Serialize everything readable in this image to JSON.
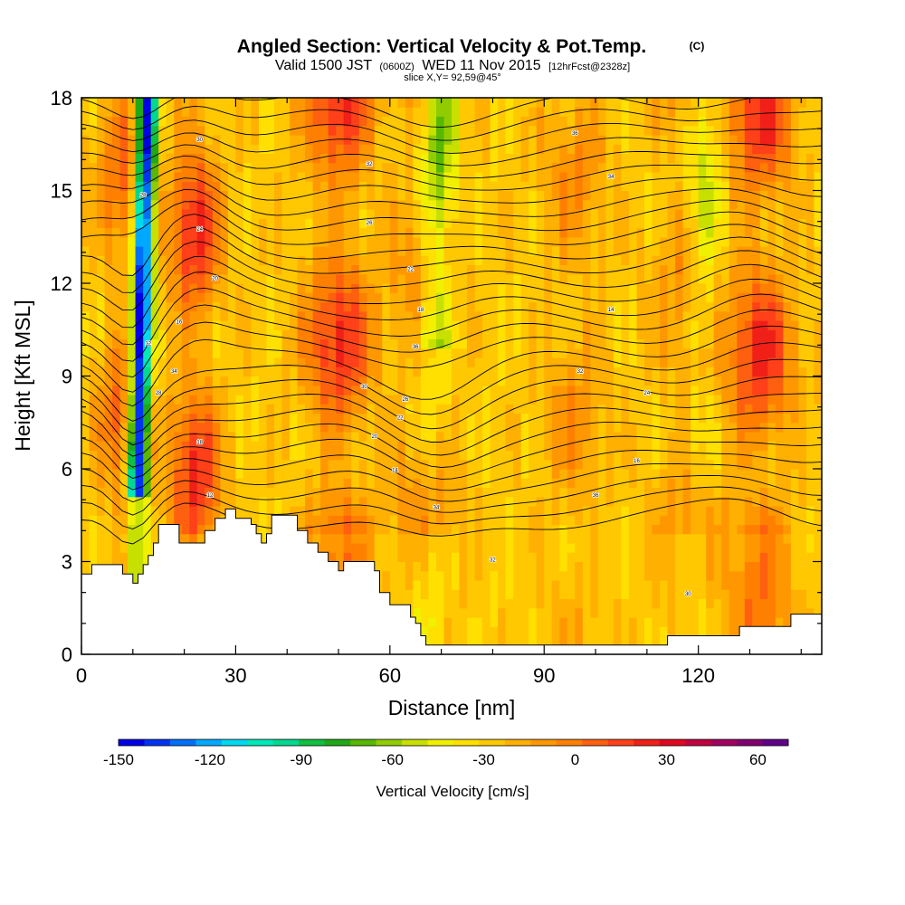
{
  "figure": {
    "title": "Angled Section: Vertical Velocity & Pot.Temp.",
    "title_unit": "(C)",
    "subtitle_a": "Valid 1500 JST",
    "subtitle_b": "(0600Z)",
    "subtitle_c": "WED 11 Nov 2015",
    "subtitle_d": "[12hrFcst@2328z]",
    "slice_label": "slice X,Y= 92,59@45°"
  },
  "colorbar": {
    "label": "Vertical Velocity [cm/s]",
    "ticks": [
      "-150",
      "-120",
      "-90",
      "-60",
      "-30",
      "0",
      "30",
      "60"
    ],
    "tick_values": [
      -150,
      -120,
      -90,
      -60,
      -30,
      0,
      30,
      60
    ],
    "range": [
      -150,
      70
    ],
    "bin_width": 10,
    "colors": [
      "#0000e6",
      "#0034f0",
      "#0070f8",
      "#00a8ff",
      "#00d8f0",
      "#00e8b8",
      "#00d890",
      "#10c040",
      "#20a818",
      "#58b800",
      "#90cc00",
      "#c8e000",
      "#f0f000",
      "#ffe000",
      "#ffc800",
      "#ffb000",
      "#ff9800",
      "#ff8000",
      "#ff6010",
      "#ff4018",
      "#f02018",
      "#e00820",
      "#c00040",
      "#a00060",
      "#800070",
      "#600088"
    ]
  },
  "chart_data": {
    "type": "heatmap",
    "title": "Angled Section: Vertical Velocity & Pot.Temp.",
    "xlabel": "Distance [nm]",
    "ylabel": "Height [Kft MSL]",
    "xlim": [
      0,
      144
    ],
    "ylim": [
      0,
      18
    ],
    "x_ticks": [
      0,
      30,
      60,
      90,
      120
    ],
    "y_ticks": [
      0,
      3,
      6,
      9,
      12,
      15,
      18
    ],
    "fill_variable": "Vertical Velocity [cm/s]",
    "contour_variable": "Pot.Temp. (C)",
    "updraft_columns": [
      {
        "x": 8,
        "peak_cm_s": 40
      },
      {
        "x": 22,
        "peak_cm_s": 60
      },
      {
        "x": 50,
        "peak_cm_s": 60
      },
      {
        "x": 67,
        "peak_cm_s": 35
      },
      {
        "x": 96,
        "peak_cm_s": 25
      },
      {
        "x": 118,
        "peak_cm_s": 30
      },
      {
        "x": 132,
        "peak_cm_s": 60
      }
    ],
    "downdraft_columns": [
      {
        "x": 11,
        "peak_cm_s": -150
      },
      {
        "x": 68,
        "peak_cm_s": -60
      },
      {
        "x": 120,
        "peak_cm_s": -40
      }
    ],
    "terrain": [
      [
        0,
        2.6
      ],
      [
        2,
        2.9
      ],
      [
        6,
        2.9
      ],
      [
        8,
        2.6
      ],
      [
        10,
        2.3
      ],
      [
        11,
        2.6
      ],
      [
        12,
        2.9
      ],
      [
        13,
        3.2
      ],
      [
        14,
        3.6
      ],
      [
        15,
        4.2
      ],
      [
        18,
        4.2
      ],
      [
        19,
        3.6
      ],
      [
        23,
        3.6
      ],
      [
        24,
        4.0
      ],
      [
        26,
        4.4
      ],
      [
        28,
        4.7
      ],
      [
        30,
        4.4
      ],
      [
        33,
        4.2
      ],
      [
        34,
        3.9
      ],
      [
        35,
        3.6
      ],
      [
        36,
        3.9
      ],
      [
        37,
        4.5
      ],
      [
        41,
        4.5
      ],
      [
        42,
        4.0
      ],
      [
        44,
        3.6
      ],
      [
        46,
        3.3
      ],
      [
        48,
        3.0
      ],
      [
        50,
        2.7
      ],
      [
        51,
        3.0
      ],
      [
        54,
        3.0
      ],
      [
        57,
        2.7
      ],
      [
        58,
        2.0
      ],
      [
        60,
        1.6
      ],
      [
        63,
        1.6
      ],
      [
        64,
        1.2
      ],
      [
        65,
        1.0
      ],
      [
        66,
        0.6
      ],
      [
        67,
        0.3
      ],
      [
        72,
        0.3
      ],
      [
        78,
        0.3
      ],
      [
        100,
        0.3
      ],
      [
        106,
        0.3
      ],
      [
        110,
        0.3
      ],
      [
        114,
        0.6
      ],
      [
        128,
        0.9
      ],
      [
        134,
        0.9
      ],
      [
        138,
        1.3
      ],
      [
        144,
        1.3
      ]
    ],
    "contour_labels": [
      "36",
      "34",
      "32",
      "30",
      "28",
      "26",
      "24",
      "22",
      "20",
      "18",
      "16",
      "14",
      "12"
    ]
  }
}
